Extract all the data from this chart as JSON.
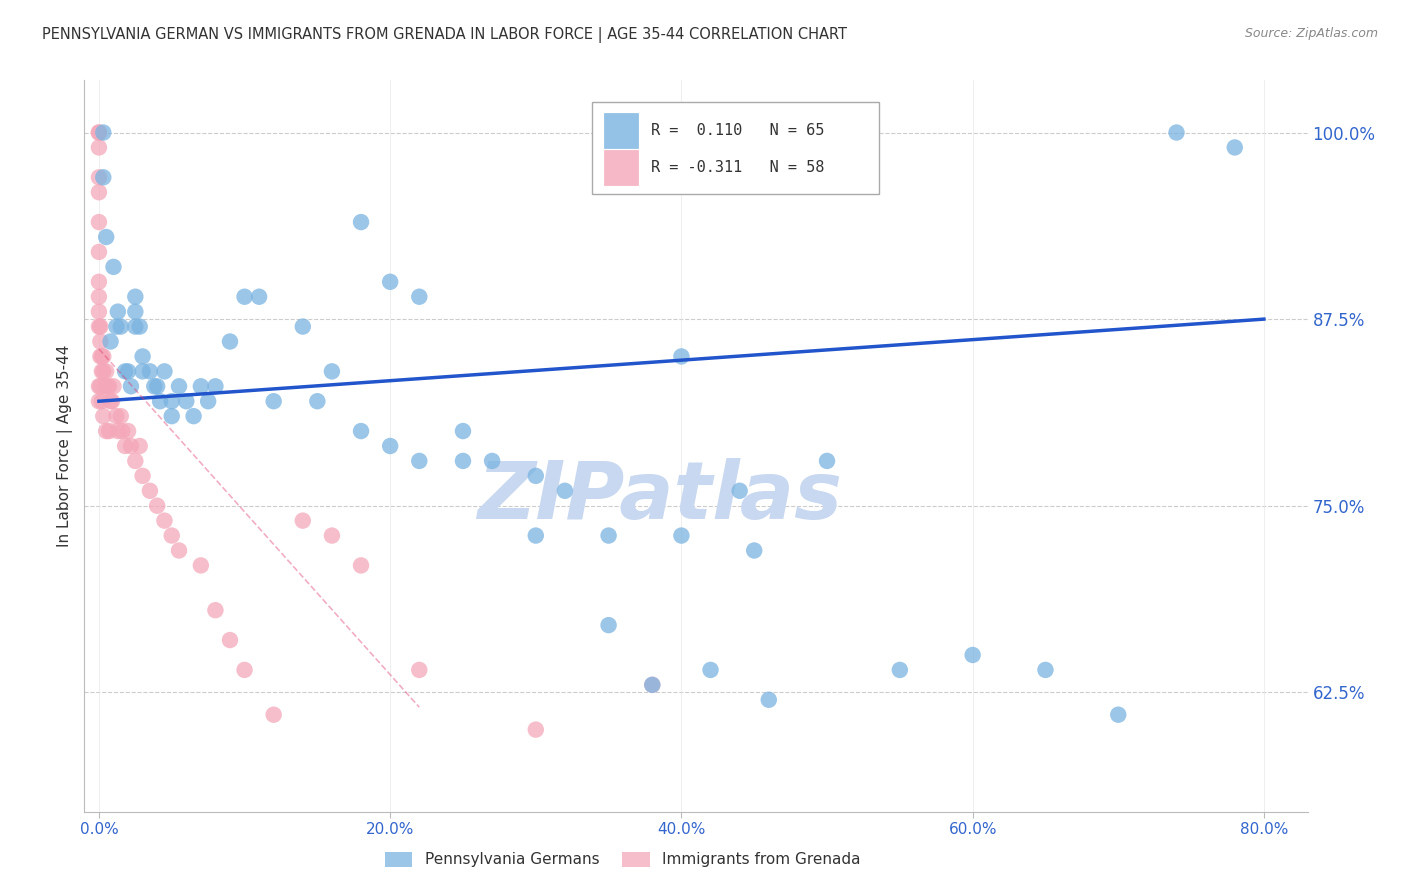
{
  "title": "PENNSYLVANIA GERMAN VS IMMIGRANTS FROM GRENADA IN LABOR FORCE | AGE 35-44 CORRELATION CHART",
  "source": "Source: ZipAtlas.com",
  "ylabel": "In Labor Force | Age 35-44",
  "x_tick_labels": [
    "0.0%",
    "20.0%",
    "40.0%",
    "60.0%",
    "80.0%"
  ],
  "x_tick_values": [
    0.0,
    0.2,
    0.4,
    0.6,
    0.8
  ],
  "y_tick_labels": [
    "62.5%",
    "75.0%",
    "87.5%",
    "100.0%"
  ],
  "y_tick_values": [
    0.625,
    0.75,
    0.875,
    1.0
  ],
  "ylim": [
    0.545,
    1.035
  ],
  "xlim": [
    -0.01,
    0.83
  ],
  "legend_r1_label": "R = ",
  "legend_r1_val": "0.110",
  "legend_r1_n": "N = 65",
  "legend_r2_label": "R = ",
  "legend_r2_val": "-0.311",
  "legend_r2_n": "N = 58",
  "legend_color1": "#7ab3e0",
  "legend_color2": "#f4a7b9",
  "dot_color_blue": "#7ab3e0",
  "dot_color_pink": "#f4a7b9",
  "trend_color_blue": "#2255cc",
  "trend_color_pink": "#dd3366",
  "watermark": "ZIPatlas",
  "watermark_color": "#c8d8f0",
  "blue_dots_x": [
    0.003,
    0.003,
    0.005,
    0.008,
    0.01,
    0.012,
    0.013,
    0.015,
    0.018,
    0.02,
    0.022,
    0.025,
    0.025,
    0.025,
    0.028,
    0.03,
    0.03,
    0.035,
    0.038,
    0.04,
    0.042,
    0.045,
    0.05,
    0.05,
    0.055,
    0.06,
    0.065,
    0.07,
    0.075,
    0.08,
    0.09,
    0.1,
    0.11,
    0.12,
    0.14,
    0.16,
    0.18,
    0.2,
    0.22,
    0.25,
    0.27,
    0.3,
    0.32,
    0.35,
    0.38,
    0.4,
    0.42,
    0.44,
    0.46,
    0.5,
    0.55,
    0.6,
    0.65,
    0.7,
    0.74,
    0.78,
    0.3,
    0.35,
    0.4,
    0.45,
    0.2,
    0.25,
    0.15,
    0.18,
    0.22
  ],
  "blue_dots_y": [
    0.97,
    1.0,
    0.93,
    0.86,
    0.91,
    0.87,
    0.88,
    0.87,
    0.84,
    0.84,
    0.83,
    0.88,
    0.87,
    0.89,
    0.87,
    0.84,
    0.85,
    0.84,
    0.83,
    0.83,
    0.82,
    0.84,
    0.82,
    0.81,
    0.83,
    0.82,
    0.81,
    0.83,
    0.82,
    0.83,
    0.86,
    0.89,
    0.89,
    0.82,
    0.87,
    0.84,
    0.94,
    0.9,
    0.89,
    0.78,
    0.78,
    0.73,
    0.76,
    0.67,
    0.63,
    0.85,
    0.64,
    0.76,
    0.62,
    0.78,
    0.64,
    0.65,
    0.64,
    0.61,
    1.0,
    0.99,
    0.77,
    0.73,
    0.73,
    0.72,
    0.79,
    0.8,
    0.82,
    0.8,
    0.78
  ],
  "pink_dots_x": [
    0.0,
    0.0,
    0.0,
    0.0,
    0.0,
    0.0,
    0.0,
    0.0,
    0.0,
    0.0,
    0.001,
    0.001,
    0.001,
    0.002,
    0.002,
    0.003,
    0.003,
    0.004,
    0.005,
    0.006,
    0.007,
    0.008,
    0.009,
    0.01,
    0.012,
    0.013,
    0.015,
    0.016,
    0.018,
    0.02,
    0.022,
    0.025,
    0.028,
    0.03,
    0.035,
    0.04,
    0.045,
    0.05,
    0.055,
    0.07,
    0.08,
    0.09,
    0.1,
    0.12,
    0.14,
    0.16,
    0.18,
    0.22,
    0.3,
    0.38,
    0.0,
    0.0,
    0.0,
    0.001,
    0.002,
    0.003,
    0.005,
    0.007
  ],
  "pink_dots_y": [
    1.0,
    1.0,
    0.99,
    0.97,
    0.96,
    0.94,
    0.92,
    0.9,
    0.89,
    0.87,
    0.87,
    0.86,
    0.85,
    0.85,
    0.84,
    0.85,
    0.84,
    0.83,
    0.84,
    0.83,
    0.83,
    0.82,
    0.82,
    0.83,
    0.81,
    0.8,
    0.81,
    0.8,
    0.79,
    0.8,
    0.79,
    0.78,
    0.79,
    0.77,
    0.76,
    0.75,
    0.74,
    0.73,
    0.72,
    0.71,
    0.68,
    0.66,
    0.64,
    0.61,
    0.74,
    0.73,
    0.71,
    0.64,
    0.6,
    0.63,
    0.88,
    0.83,
    0.82,
    0.83,
    0.82,
    0.81,
    0.8,
    0.8
  ],
  "blue_trend_x": [
    0.0,
    0.8
  ],
  "blue_trend_y": [
    0.82,
    0.875
  ],
  "pink_trend_x": [
    0.0,
    0.22
  ],
  "pink_trend_y": [
    0.855,
    0.615
  ],
  "bottom_labels": [
    "Pennsylvania Germans",
    "Immigrants from Grenada"
  ],
  "title_fontsize": 10.5,
  "axis_label_fontsize": 11,
  "tick_fontsize": 11
}
